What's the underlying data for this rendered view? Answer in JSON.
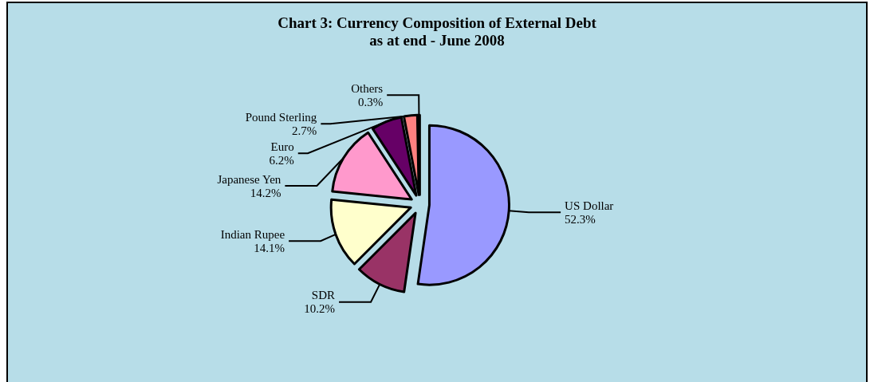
{
  "chart_data": {
    "type": "pie",
    "title": "Chart 3: Currency Composition of External Debt\nas at end - June 2008",
    "categories": [
      "US Dollar",
      "SDR",
      "Indian Rupee",
      "Japanese Yen",
      "Euro",
      "Pound Sterling",
      "Others"
    ],
    "values": [
      52.3,
      10.2,
      14.1,
      14.2,
      6.2,
      2.7,
      0.3
    ],
    "value_labels": [
      "52.3%",
      "10.2%",
      "14.1%",
      "14.2%",
      "6.2%",
      "2.7%",
      "0.3%"
    ],
    "colors": [
      "#9999ff",
      "#993366",
      "#ffffcc",
      "#ff99cc",
      "#660066",
      "#ff8080",
      "#1a1a1a"
    ],
    "legend": false
  }
}
